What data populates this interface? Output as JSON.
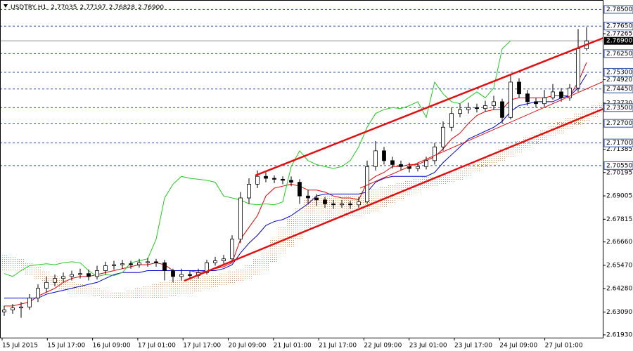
{
  "chart_data": {
    "type": "candlestick",
    "title": "USDTRY,H1",
    "header_values": [
      "2.77035",
      "2.77197",
      "2.76828",
      "2.76900"
    ],
    "x_labels": [
      "15 Jul 2015",
      "15 Jul 17:00",
      "16 Jul 09:00",
      "17 Jul 01:00",
      "17 Jul 17:00",
      "20 Jul 09:00",
      "21 Jul 01:00",
      "21 Jul 17:00",
      "22 Jul 09:00",
      "23 Jul 01:00",
      "23 Jul 17:00",
      "24 Jul 09:00",
      "27 Jul 01:00"
    ],
    "up_color": "#ffffff",
    "down_color": "#000000",
    "open": [
      2.631,
      2.632,
      2.633,
      2.6335,
      2.638,
      2.643,
      2.646,
      2.648,
      2.649,
      2.65,
      2.6505,
      2.649,
      2.652,
      2.6545,
      2.655,
      2.6555,
      2.655,
      2.656,
      2.6565,
      2.656,
      2.652,
      2.649,
      2.65,
      2.6495,
      2.651,
      2.656,
      2.657,
      2.658,
      2.668,
      2.689,
      2.696,
      2.7,
      2.699,
      2.6985,
      2.698,
      2.697,
      2.69,
      2.689,
      2.688,
      2.686,
      2.6855,
      2.686,
      2.6855,
      2.687,
      2.705,
      2.713,
      2.708,
      2.706,
      2.705,
      2.704,
      2.705,
      2.708,
      2.715,
      2.725,
      2.732,
      2.734,
      2.735,
      2.7345,
      2.736,
      2.738,
      2.73,
      2.748,
      2.742,
      2.738,
      2.737,
      2.74,
      2.743,
      2.74,
      2.745,
      2.765
    ],
    "high": [
      2.634,
      2.635,
      2.636,
      2.64,
      2.645,
      2.649,
      2.65,
      2.651,
      2.652,
      2.653,
      2.6525,
      2.6545,
      2.6565,
      2.657,
      2.6575,
      2.657,
      2.658,
      2.6585,
      2.658,
      2.6575,
      2.653,
      2.653,
      2.652,
      2.653,
      2.6575,
      2.659,
      2.66,
      2.67,
      2.692,
      2.699,
      2.703,
      2.702,
      2.7005,
      2.7,
      2.7,
      2.6985,
      2.693,
      2.691,
      2.6895,
      2.688,
      2.688,
      2.6875,
      2.6895,
      2.708,
      2.718,
      2.715,
      2.71,
      2.708,
      2.707,
      2.707,
      2.71,
      2.717,
      2.728,
      2.735,
      2.737,
      2.7375,
      2.737,
      2.7385,
      2.741,
      2.7395,
      2.752,
      2.75,
      2.744,
      2.74,
      2.744,
      2.747,
      2.745,
      2.747,
      2.775,
      2.776
    ],
    "low": [
      2.629,
      2.63,
      2.628,
      2.632,
      2.636,
      2.641,
      2.644,
      2.646,
      2.647,
      2.648,
      2.647,
      2.6475,
      2.65,
      2.6525,
      2.653,
      2.653,
      2.6535,
      2.654,
      2.654,
      2.647,
      2.646,
      2.647,
      2.6475,
      2.648,
      2.65,
      2.6545,
      2.6555,
      2.657,
      2.666,
      2.686,
      2.694,
      2.697,
      2.6965,
      2.696,
      2.695,
      2.686,
      2.686,
      2.685,
      2.684,
      2.6835,
      2.684,
      2.6835,
      2.684,
      2.686,
      2.703,
      2.706,
      2.704,
      2.703,
      2.702,
      2.7025,
      2.7035,
      2.706,
      2.713,
      2.723,
      2.73,
      2.732,
      2.7325,
      2.733,
      2.734,
      2.727,
      2.729,
      2.74,
      2.736,
      2.735,
      2.7355,
      2.739,
      2.738,
      2.7385,
      2.743,
      2.764
    ],
    "close": [
      2.632,
      2.633,
      2.6335,
      2.638,
      2.643,
      2.646,
      2.648,
      2.649,
      2.65,
      2.6505,
      2.649,
      2.652,
      2.6545,
      2.655,
      2.6555,
      2.655,
      2.656,
      2.6565,
      2.656,
      2.652,
      2.649,
      2.65,
      2.6495,
      2.651,
      2.656,
      2.657,
      2.658,
      2.668,
      2.689,
      2.696,
      2.7,
      2.699,
      2.6985,
      2.698,
      2.697,
      2.69,
      2.689,
      2.688,
      2.686,
      2.6855,
      2.686,
      2.6855,
      2.687,
      2.705,
      2.713,
      2.708,
      2.706,
      2.705,
      2.704,
      2.705,
      2.708,
      2.715,
      2.725,
      2.732,
      2.734,
      2.735,
      2.7345,
      2.736,
      2.738,
      2.73,
      2.748,
      2.742,
      2.738,
      2.737,
      2.74,
      2.743,
      2.74,
      2.745,
      2.765,
      2.769
    ],
    "series": [
      {
        "color": "#e00000",
        "values": [
          2.634,
          2.634,
          2.635,
          2.636,
          2.639,
          2.641,
          2.643,
          2.646,
          2.648,
          2.649,
          2.649,
          2.65,
          2.651,
          2.652,
          2.653,
          2.654,
          2.655,
          2.655,
          2.656,
          2.655,
          2.652,
          2.652,
          2.652,
          2.651,
          2.652,
          2.653,
          2.654,
          2.656,
          2.668,
          2.674,
          2.68,
          2.69,
          2.694,
          2.695,
          2.696,
          2.695,
          2.693,
          2.693,
          2.692,
          2.69,
          2.689,
          2.689,
          2.688,
          2.697,
          2.7,
          2.702,
          2.705,
          2.705,
          2.706,
          2.706,
          2.708,
          2.71,
          2.714,
          2.719,
          2.722,
          2.727,
          2.731,
          2.733,
          2.734,
          2.734,
          2.739,
          2.74,
          2.74,
          2.74,
          2.74,
          2.741,
          2.741,
          2.741,
          2.748,
          2.758
        ]
      },
      {
        "color": "#0000cc",
        "values": [
          2.638,
          2.638,
          2.638,
          2.638,
          2.638,
          2.64,
          2.641,
          2.642,
          2.643,
          2.644,
          2.645,
          2.646,
          2.648,
          2.65,
          2.651,
          2.651,
          2.651,
          2.652,
          2.652,
          2.652,
          2.652,
          2.652,
          2.652,
          2.652,
          2.652,
          2.652,
          2.653,
          2.655,
          2.661,
          2.666,
          2.67,
          2.675,
          2.677,
          2.678,
          2.68,
          2.683,
          2.686,
          2.69,
          2.691,
          2.691,
          2.691,
          2.691,
          2.691,
          2.692,
          2.697,
          2.699,
          2.7,
          2.7,
          2.7,
          2.7,
          2.7,
          2.702,
          2.707,
          2.711,
          2.715,
          2.719,
          2.721,
          2.723,
          2.725,
          2.728,
          2.733,
          2.736,
          2.737,
          2.738,
          2.738,
          2.738,
          2.74,
          2.741,
          2.745,
          2.752
        ]
      },
      {
        "color": "#22cc22",
        "values": [
          2.6505,
          2.649,
          2.652,
          2.6545,
          2.655,
          2.6555,
          2.655,
          2.656,
          2.6565,
          2.656,
          2.652,
          2.649,
          2.65,
          2.6495,
          2.651,
          2.656,
          2.657,
          2.658,
          2.668,
          2.689,
          2.696,
          2.7,
          2.699,
          2.6985,
          2.698,
          2.697,
          2.69,
          2.689,
          2.688,
          2.686,
          2.6855,
          2.686,
          2.6855,
          2.687,
          2.705,
          2.713,
          2.708,
          2.706,
          2.705,
          2.704,
          2.705,
          2.708,
          2.715,
          2.725,
          2.732,
          2.734,
          2.735,
          2.7345,
          2.736,
          2.738,
          2.73,
          2.748,
          2.742,
          2.738,
          2.737,
          2.74,
          2.743,
          2.74,
          2.745,
          2.765,
          2.769,
          null,
          null,
          null,
          null,
          null,
          null,
          null,
          null,
          null
        ]
      }
    ],
    "cloud": {
      "color": "#e8905a",
      "span_a": [
        2.66,
        2.659,
        2.658,
        2.656,
        2.654,
        2.652,
        2.65,
        2.648,
        2.646,
        2.645,
        2.644,
        2.643,
        2.642,
        2.641,
        2.641,
        2.642,
        2.643,
        2.644,
        2.645,
        2.646,
        2.647,
        2.648,
        2.648,
        2.649,
        2.65,
        2.65,
        2.651,
        2.652,
        2.653,
        2.655,
        2.658,
        2.662,
        2.668,
        2.674,
        2.68,
        2.684,
        2.688,
        2.69,
        2.69,
        2.69,
        2.69,
        2.691,
        2.692,
        2.693,
        2.694,
        2.695,
        2.696,
        2.697,
        2.698,
        2.699,
        2.7,
        2.7,
        2.701,
        2.702,
        2.703,
        2.705,
        2.707,
        2.71,
        2.712,
        2.714,
        2.716,
        2.718,
        2.72,
        2.722,
        2.724,
        2.726,
        2.728,
        2.73,
        2.732,
        2.734,
        2.736,
        2.737
      ],
      "span_b": [
        2.652,
        2.652,
        2.652,
        2.65,
        2.648,
        2.646,
        2.644,
        2.642,
        2.64,
        2.64,
        2.64,
        2.639,
        2.638,
        2.638,
        2.638,
        2.638,
        2.638,
        2.638,
        2.638,
        2.638,
        2.639,
        2.64,
        2.64,
        2.641,
        2.642,
        2.643,
        2.644,
        2.645,
        2.646,
        2.648,
        2.65,
        2.652,
        2.656,
        2.66,
        2.664,
        2.668,
        2.672,
        2.675,
        2.677,
        2.678,
        2.679,
        2.68,
        2.68,
        2.681,
        2.682,
        2.684,
        2.686,
        2.688,
        2.69,
        2.692,
        2.694,
        2.695,
        2.696,
        2.697,
        2.698,
        2.7,
        2.702,
        2.704,
        2.706,
        2.708,
        2.71,
        2.712,
        2.714,
        2.716,
        2.718,
        2.72,
        2.722,
        2.724,
        2.726,
        2.728,
        2.73,
        2.732
      ]
    },
    "levels": [
      {
        "value": 2.785,
        "label": "2.78500"
      },
      {
        "value": 2.7765,
        "label": "2.77650"
      },
      {
        "value": 2.7625,
        "label": "2.76250"
      },
      {
        "value": 2.753,
        "label": "2.75300"
      },
      {
        "value": 2.7445,
        "label": "2.74450"
      },
      {
        "value": 2.735,
        "label": "2.73500"
      },
      {
        "value": 2.727,
        "label": "2.72700"
      },
      {
        "value": 2.717,
        "label": "2.71700"
      },
      {
        "value": 2.7055,
        "label": "2.70550"
      }
    ],
    "level_color": "#2f4f9f",
    "current_price": {
      "value": 2.769,
      "label": "2.76900"
    },
    "ylim": [
      2.6175,
      2.7898
    ],
    "yticks": [
      {
        "value": 2.6193,
        "label": "2.61930"
      },
      {
        "value": 2.6309,
        "label": "2.63090"
      },
      {
        "value": 2.6428,
        "label": "2.64280"
      },
      {
        "value": 2.6547,
        "label": "2.65470"
      },
      {
        "value": 2.6666,
        "label": "2.66660"
      },
      {
        "value": 2.67815,
        "label": "2.67815"
      },
      {
        "value": 2.69005,
        "label": "2.69005"
      },
      {
        "value": 2.70195,
        "label": "2.70195"
      },
      {
        "value": 2.71385,
        "label": "2.71385"
      },
      {
        "value": 2.7373,
        "label": "2.73730"
      },
      {
        "value": 2.7492,
        "label": "2.74920"
      },
      {
        "value": 2.77265,
        "label": "2.77265"
      }
    ]
  }
}
